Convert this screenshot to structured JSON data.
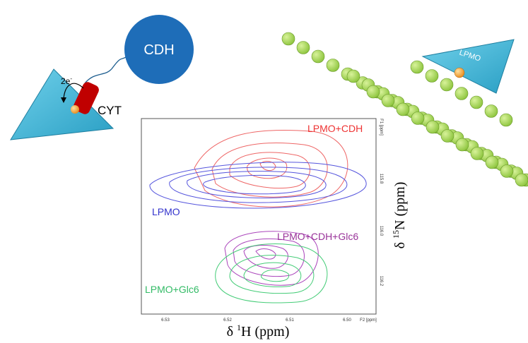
{
  "scheme": {
    "cdh": "CDH",
    "electrons": {
      "text": "2e",
      "sup": "-"
    },
    "cyt": "CYT",
    "lpmo": "LPMO"
  },
  "spectrum": {
    "peaks": [
      "LPMO+CDH",
      "LPMO",
      "LPMO+CDH+Glc6",
      "LPMO+Glc6"
    ],
    "x_ticks": [
      "6.53",
      "6.52",
      "6.51",
      "6.50"
    ],
    "x_unit": "F2 [ppm]",
    "y_ticks": [
      "115.8",
      "116.0",
      "116.2"
    ],
    "y_unit": "F1 [ppm]",
    "x_label": {
      "symbol": "δ",
      "sup": "1",
      "text": "H (ppm)"
    },
    "y_label": {
      "symbol": "δ",
      "sup": "15",
      "text": "N (ppm)"
    }
  }
}
